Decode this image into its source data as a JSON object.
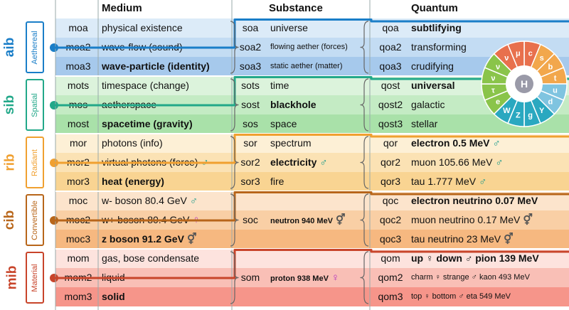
{
  "headers": {
    "medium": "Medium",
    "substance": "Substance",
    "quantum": "Quantum"
  },
  "groups": [
    {
      "tag": "aib",
      "label": "Aethereal",
      "color": "#1a7ec8"
    },
    {
      "tag": "sib",
      "label": "Spatial",
      "color": "#22a889"
    },
    {
      "tag": "rib",
      "label": "Radiant",
      "color": "#f0a030"
    },
    {
      "tag": "cib",
      "label": "Convertible",
      "color": "#b8661a"
    },
    {
      "tag": "mib",
      "label": "Material",
      "color": "#c8442a"
    }
  ],
  "rows": [
    {
      "mc": "moa",
      "mt": "physical existence",
      "sc": "soa",
      "st": "universe",
      "qc": "qoa",
      "qt": "subtlifying",
      "bg": "#dcebf8"
    },
    {
      "mc": "moa2",
      "mt": "wave-flow (sound)",
      "sc": "soa2",
      "st": "flowing aether (forces)",
      "qc": "qoa2",
      "qt": "transforming",
      "bg": "#c3dcf3"
    },
    {
      "mc": "moa3",
      "mt": "wave-particle (identity)",
      "sc": "soa3",
      "st": "static aether (matter)",
      "qc": "qoa3",
      "qt": "crudifying",
      "bg": "#a6c9ec"
    },
    {
      "mc": "mots",
      "mt": "timespace (change)",
      "sc": "sots",
      "st": "time",
      "qc": "qost",
      "qt": "universal",
      "bg": "#dcf3dc"
    },
    {
      "mc": "mos",
      "mt": "aetherspace",
      "sc": "sost",
      "st": "blackhole",
      "qc": "qost2",
      "qt": "galactic",
      "bg": "#c4ebc4"
    },
    {
      "mc": "most",
      "mt": "spacetime (gravity)",
      "sc": "sos",
      "st": "space",
      "qc": "qost3",
      "qt": "stellar",
      "bg": "#a9e1a9"
    },
    {
      "mc": "mor",
      "mt": "photons (info)",
      "sc": "sor",
      "st": "spectrum",
      "qc": "qor",
      "qt": "electron 0.5 MeV",
      "bg": "#fdf0d6"
    },
    {
      "mc": "mor2",
      "mt": "virtual photons (force)",
      "sc": "sor2",
      "st": "electricity",
      "qc": "qor2",
      "qt": "muon 105.66 MeV",
      "bg": "#fbe2b4"
    },
    {
      "mc": "mor3",
      "mt": "heat (energy)",
      "sc": "sor3",
      "st": "fire",
      "qc": "qor3",
      "qt": "tau 1.777 MeV",
      "bg": "#f9d492"
    },
    {
      "mc": "moc",
      "mt": "w- boson 80.4 GeV",
      "sc": "",
      "st": "",
      "qc": "qoc",
      "qt": "electron neutrino 0.07 MeV",
      "bg": "#fce4cc"
    },
    {
      "mc": "moc2",
      "mt": "w+ boson 80.4 GeV",
      "sc": "soc",
      "st": "neutron 940 MeV",
      "qc": "qoc2",
      "qt": "muon neutrino 0.17 MeV",
      "bg": "#f9cfa5"
    },
    {
      "mc": "moc3",
      "mt": "z boson 91.2 GeV",
      "sc": "",
      "st": "",
      "qc": "qoc3",
      "qt": "tau neutrino 23 MeV",
      "bg": "#f6b880"
    },
    {
      "mc": "mom",
      "mt": "gas, bose condensate",
      "sc": "",
      "st": "",
      "qc": "qom",
      "qt": "up ♀ down ♂ pion 139 MeV",
      "bg": "#fde3de"
    },
    {
      "mc": "mom2",
      "mt": "liquid",
      "sc": "som",
      "st": "proton 938 MeV",
      "qc": "qom2",
      "qt": "charm ♀ strange ♂ kaon 493 MeV",
      "bg": "#f9bfb6"
    },
    {
      "mc": "mom3",
      "mt": "solid",
      "sc": "",
      "st": "",
      "qc": "qom3",
      "qt": "top ♀ bottom ♂ eta 549 MeV",
      "bg": "#f6958a"
    }
  ],
  "symbols": {
    "male": "♂",
    "female": "♀",
    "neutral": "⚥"
  },
  "wheel": {
    "center": "H",
    "letters": [
      "c",
      "s",
      "b",
      "t",
      "u",
      "d",
      "Y",
      "g",
      "Z",
      "W",
      "e",
      "τ",
      "ν",
      "ν",
      "ν",
      "μ"
    ]
  }
}
